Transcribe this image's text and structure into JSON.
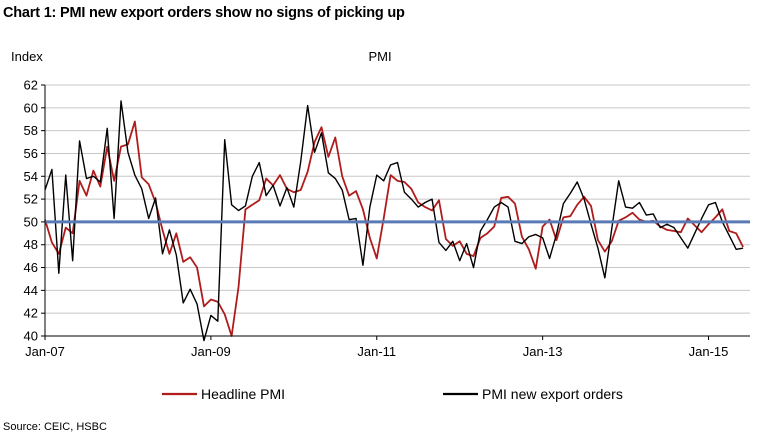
{
  "header": {
    "title": "Chart 1: PMI new export orders show no signs of picking up"
  },
  "footer": {
    "source": "Source: CEIC, HSBC"
  },
  "chart_data": {
    "type": "line",
    "title": "PMI",
    "ylabel": "Index",
    "xlabel": "",
    "ylim": [
      40,
      62
    ],
    "yticks": [
      40,
      42,
      44,
      46,
      48,
      50,
      52,
      54,
      56,
      58,
      60,
      62
    ],
    "xlim": [
      0,
      102
    ],
    "xticks": [
      {
        "label": "Jan-07",
        "x": 0
      },
      {
        "label": "Jan-09",
        "x": 24
      },
      {
        "label": "Jan-11",
        "x": 48
      },
      {
        "label": "Jan-13",
        "x": 72
      },
      {
        "label": "Jan-15",
        "x": 96
      }
    ],
    "grid": true,
    "legend_position": "bottom",
    "reference_line": {
      "value": 50,
      "color": "#5a7ab5"
    },
    "series": [
      {
        "name": "Headline PMI",
        "color": "#b01c1c",
        "values": [
          50.2,
          48.2,
          47.2,
          49.5,
          49.0,
          53.6,
          52.3,
          54.5,
          53.1,
          56.6,
          53.6,
          56.6,
          56.8,
          58.8,
          53.9,
          53.3,
          51.7,
          49.3,
          47.2,
          49.0,
          46.5,
          46.9,
          46.0,
          42.6,
          43.2,
          43.0,
          41.9,
          40.0,
          44.3,
          51.1,
          51.5,
          51.9,
          53.8,
          53.2,
          54.1,
          52.9,
          52.6,
          52.8,
          54.4,
          57.0,
          58.3,
          55.7,
          57.4,
          54.0,
          52.3,
          52.7,
          51.1,
          48.6,
          46.8,
          50.3,
          54.1,
          53.6,
          53.5,
          52.9,
          51.7,
          51.3,
          51.0,
          51.9,
          48.5,
          47.9,
          48.3,
          47.2,
          47.0,
          48.6,
          49.0,
          49.6,
          52.1,
          52.2,
          51.6,
          48.7,
          47.6,
          45.9,
          49.6,
          50.2,
          48.4,
          50.4,
          50.5,
          51.5,
          52.2,
          51.4,
          48.4,
          47.4,
          48.3,
          50.1,
          50.4,
          50.8,
          50.2,
          50.0,
          50.1,
          49.6,
          49.3,
          49.2,
          49.1,
          50.3,
          49.7,
          49.1,
          49.8,
          50.4,
          51.1,
          49.2,
          49.0,
          47.8
        ]
      },
      {
        "name": "PMI new export orders",
        "color": "#000000",
        "values": [
          52.8,
          54.6,
          45.5,
          54.1,
          46.6,
          57.1,
          53.8,
          54.0,
          53.5,
          58.2,
          50.3,
          60.6,
          56.1,
          54.1,
          52.9,
          50.3,
          52.1,
          47.2,
          49.3,
          47.1,
          42.9,
          44.1,
          42.8,
          39.6,
          41.8,
          41.3,
          57.2,
          51.5,
          51.0,
          51.4,
          54.0,
          55.2,
          52.3,
          53.2,
          51.4,
          53.0,
          51.3,
          55.3,
          60.2,
          56.1,
          57.8,
          54.3,
          53.8,
          52.8,
          50.2,
          50.3,
          46.2,
          51.3,
          54.1,
          53.6,
          55.0,
          55.2,
          52.6,
          52.0,
          51.3,
          51.7,
          52.0,
          48.2,
          47.5,
          48.3,
          46.6,
          48.1,
          46.0,
          49.2,
          50.2,
          51.3,
          51.7,
          51.3,
          48.3,
          48.1,
          48.7,
          48.9,
          48.6,
          46.8,
          48.9,
          51.6,
          52.5,
          53.5,
          52.0,
          49.8,
          47.7,
          45.1,
          49.4,
          53.6,
          51.3,
          51.2,
          51.7,
          50.6,
          50.7,
          49.5,
          49.8,
          49.5,
          48.6,
          47.7,
          49.0,
          50.3,
          51.5,
          51.7,
          50.0,
          48.8,
          47.6,
          47.7
        ]
      }
    ]
  }
}
